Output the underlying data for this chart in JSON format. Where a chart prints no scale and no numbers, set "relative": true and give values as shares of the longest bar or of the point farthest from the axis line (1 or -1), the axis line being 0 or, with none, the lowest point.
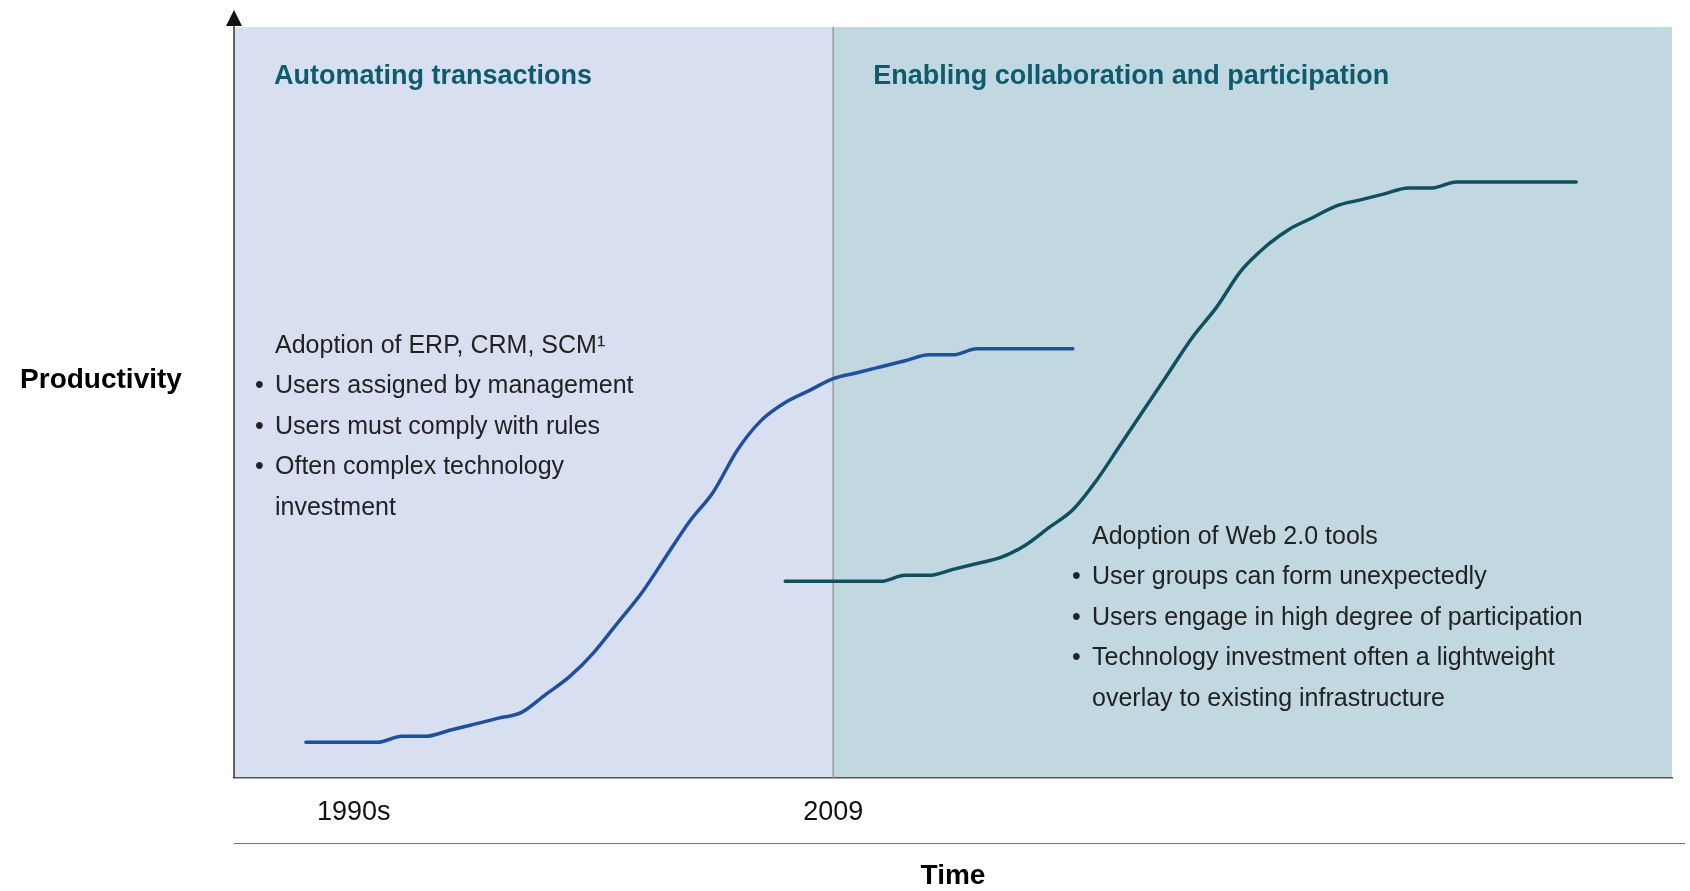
{
  "chart_data": {
    "type": "line",
    "relative": true,
    "xlabel": "Time",
    "ylabel": "Productivity",
    "categories": [
      null,
      null,
      null,
      null,
      null,
      "1990s",
      null,
      null,
      null,
      null,
      null,
      null,
      null,
      null,
      null,
      null,
      null,
      null,
      null,
      null,
      null,
      null,
      null,
      null,
      null,
      "2009",
      null,
      null,
      null,
      null,
      null,
      null,
      null,
      null,
      null,
      null,
      null,
      null,
      null,
      null,
      null,
      null,
      null,
      null,
      null,
      null,
      null,
      null,
      null,
      null,
      null,
      null,
      null,
      null,
      null,
      null,
      null,
      null,
      null,
      null,
      null
    ],
    "tick_labels": "x",
    "legend": false,
    "marker": "none",
    "line_style": "solid",
    "ref_lines": [
      {
        "axis": "x",
        "value": "2009",
        "color": "#9a9a9a"
      }
    ],
    "series": [
      {
        "color": "#1f4f9f",
        "values": [
          null,
          null,
          null,
          0.06,
          0.06,
          0.06,
          0.06,
          0.07,
          0.07,
          0.08,
          0.09,
          0.1,
          0.11,
          0.14,
          0.17,
          0.21,
          0.26,
          0.31,
          0.37,
          0.43,
          0.48,
          0.55,
          0.6,
          0.63,
          0.65,
          0.67,
          0.68,
          0.69,
          0.7,
          0.71,
          0.71,
          0.72,
          0.72,
          0.72,
          0.72,
          0.72,
          null,
          null,
          null,
          null,
          null,
          null,
          null,
          null,
          null,
          null,
          null,
          null,
          null,
          null,
          null,
          null,
          null,
          null,
          null,
          null,
          null,
          null,
          null,
          null,
          null
        ]
      },
      {
        "color": "#0f5060",
        "values": [
          null,
          null,
          null,
          null,
          null,
          null,
          null,
          null,
          null,
          null,
          null,
          null,
          null,
          null,
          null,
          null,
          null,
          null,
          null,
          null,
          null,
          null,
          null,
          0.33,
          0.33,
          0.33,
          0.33,
          0.33,
          0.34,
          0.34,
          0.35,
          0.36,
          0.37,
          0.39,
          0.42,
          0.45,
          0.5,
          0.56,
          0.62,
          0.68,
          0.74,
          0.79,
          0.85,
          0.89,
          0.92,
          0.94,
          0.96,
          0.97,
          0.98,
          0.99,
          0.99,
          1.0,
          1.0,
          1.0,
          1.0,
          1.0,
          1.0,
          null,
          null,
          null,
          null
        ]
      }
    ],
    "annotations": [
      "Automating transactions",
      "Enabling collaboration and participation",
      "Adoption of ERP, CRM, SCM¹\n• Users assigned by management\n• Users must comply with rules\n• Often complex technology\ninvestment",
      "Adoption of Web 2.0 tools\n• User groups can form unexpectedly\n• Users engage in high degree of participation\n• Technology investment often a lightweight\noverlay to existing infrastructure"
    ]
  }
}
